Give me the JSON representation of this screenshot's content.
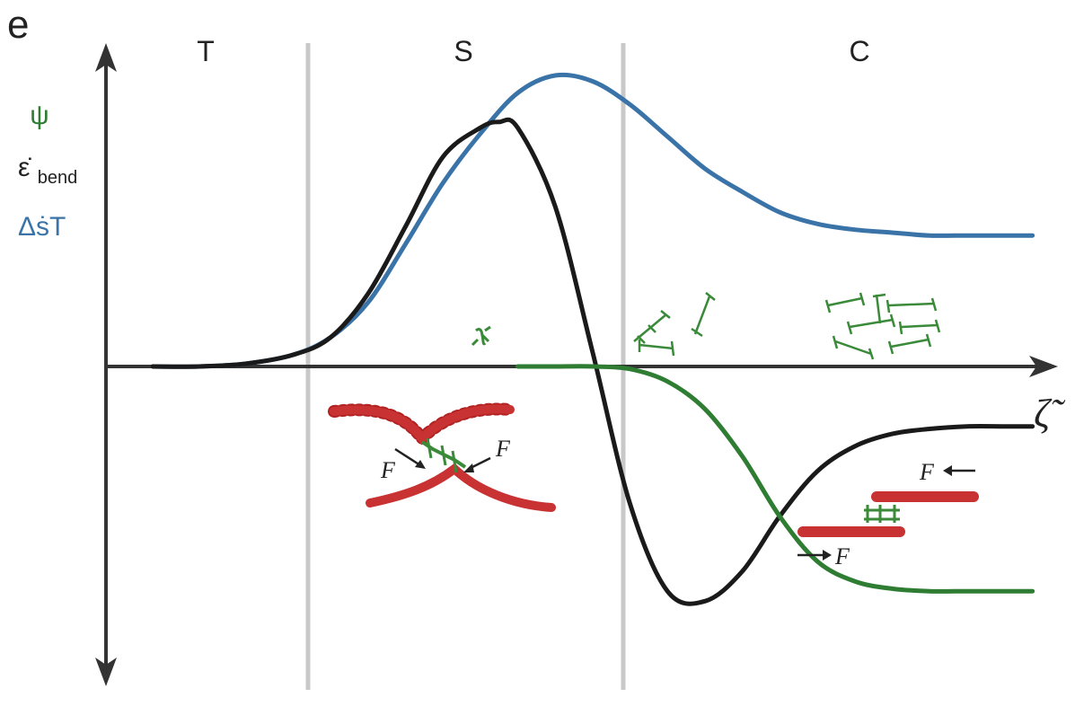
{
  "panel_letter": "e",
  "regions": [
    "T",
    "S",
    "C"
  ],
  "y_labels": [
    {
      "text": "ψ",
      "sub": "",
      "color": "#2e7d32"
    },
    {
      "text": "ε̇",
      "sub": "bend",
      "color": "#222222"
    },
    {
      "text": "ΔṡT",
      "sub": "",
      "color": "#3a73a8"
    }
  ],
  "x_label": "ζ̃",
  "force_label": "F",
  "colors": {
    "axis": "#333333",
    "divider": "#c8c8c8",
    "blue": "#3a73a8",
    "black": "#1a1a1a",
    "green": "#2e7d32",
    "filament": "#b22222",
    "protein": "#3a8a3a"
  },
  "chart_data": {
    "type": "line",
    "xlabel": "ζ̃",
    "ylabel": "",
    "x_range": [
      0,
      10
    ],
    "y_range": [
      -1,
      1
    ],
    "region_boundaries": [
      2.4,
      6.0
    ],
    "region_labels": [
      "T",
      "S",
      "C"
    ],
    "series": [
      {
        "name": "ΔṡT",
        "color": "#3a73a8",
        "x": [
          0.5,
          1.0,
          1.5,
          2.0,
          2.4,
          2.8,
          3.2,
          3.6,
          4.0,
          4.4,
          4.8,
          5.2,
          5.6,
          6.0,
          6.4,
          6.8,
          7.2,
          7.6,
          8.0,
          8.4,
          8.8,
          9.2,
          9.6,
          9.9
        ],
        "y": [
          0.0,
          0.0,
          0.01,
          0.04,
          0.1,
          0.22,
          0.42,
          0.63,
          0.8,
          0.94,
          1.0,
          0.98,
          0.9,
          0.79,
          0.68,
          0.6,
          0.53,
          0.49,
          0.47,
          0.46,
          0.45,
          0.45,
          0.45,
          0.45
        ]
      },
      {
        "name": "ε̇bend",
        "color": "#1a1a1a",
        "x": [
          0.5,
          1.0,
          1.5,
          2.0,
          2.4,
          2.8,
          3.2,
          3.6,
          4.0,
          4.2,
          4.4,
          4.8,
          5.2,
          5.6,
          6.0,
          6.4,
          6.8,
          7.2,
          7.6,
          8.0,
          8.4,
          8.8,
          9.2,
          9.6,
          9.9
        ],
        "y": [
          0.0,
          0.0,
          0.01,
          0.04,
          0.1,
          0.25,
          0.48,
          0.72,
          0.82,
          0.84,
          0.82,
          0.55,
          0.05,
          -0.55,
          -0.9,
          -0.94,
          -0.82,
          -0.6,
          -0.42,
          -0.32,
          -0.27,
          -0.25,
          -0.24,
          -0.24,
          -0.24
        ]
      },
      {
        "name": "ψ",
        "color": "#2e7d32",
        "x": [
          4.4,
          4.8,
          5.2,
          5.6,
          6.0,
          6.4,
          6.8,
          7.2,
          7.6,
          8.0,
          8.4,
          8.8,
          9.2,
          9.6,
          9.9
        ],
        "y": [
          0.0,
          0.0,
          0.0,
          -0.01,
          -0.06,
          -0.17,
          -0.36,
          -0.6,
          -0.78,
          -0.86,
          -0.89,
          -0.9,
          -0.9,
          -0.9,
          -0.9
        ]
      }
    ]
  }
}
